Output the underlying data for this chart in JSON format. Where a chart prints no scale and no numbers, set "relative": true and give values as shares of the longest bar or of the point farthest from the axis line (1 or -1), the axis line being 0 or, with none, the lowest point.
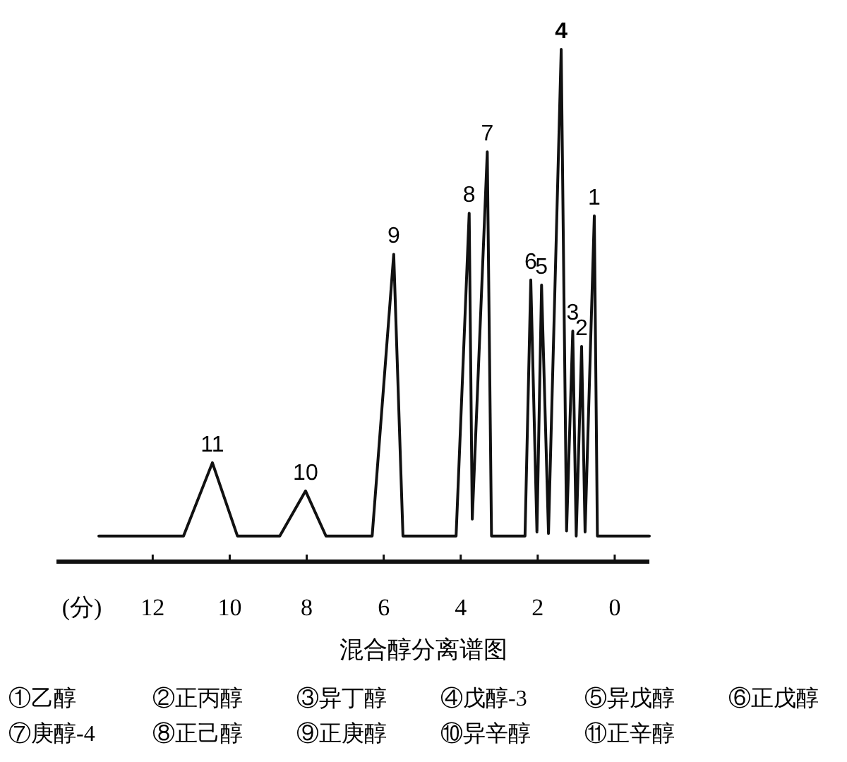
{
  "chart_data": {
    "type": "line",
    "title": "混合醇分离谱图",
    "xlabel": "(分)",
    "relative": true,
    "xlim": [
      14.5,
      -0.9
    ],
    "xticks": [
      12,
      10,
      8,
      6,
      4,
      2,
      0
    ],
    "series": [
      {
        "color": "#111111",
        "x": [
          13.4,
          11.2,
          10.45,
          9.8,
          8.7,
          8.03,
          7.5,
          6.3,
          5.74,
          5.5,
          4.4,
          4.12,
          3.78,
          3.7,
          3.31,
          3.2,
          2.33,
          2.18,
          2.02,
          1.9,
          1.72,
          1.39,
          1.25,
          1.09,
          1.0,
          0.86,
          0.77,
          0.53,
          0.45,
          -0.9
        ],
        "values": [
          0.05,
          0.05,
          0.193,
          0.05,
          0.05,
          0.138,
          0.05,
          0.05,
          0.6,
          0.05,
          0.05,
          0.05,
          0.68,
          0.083,
          0.8,
          0.05,
          0.05,
          0.55,
          0.058,
          0.54,
          0.055,
          1.0,
          0.06,
          0.45,
          0.05,
          0.42,
          0.058,
          0.675,
          0.05,
          0.05
        ]
      }
    ],
    "annotations": [
      {
        "text": "11",
        "x": 10.45,
        "y": 0.193
      },
      {
        "text": "10",
        "x": 8.03,
        "y": 0.138
      },
      {
        "text": "9",
        "x": 5.74,
        "y": 0.6
      },
      {
        "text": "8",
        "x": 3.78,
        "y": 0.68
      },
      {
        "text": "7",
        "x": 3.31,
        "y": 0.8
      },
      {
        "text": "6",
        "x": 2.18,
        "y": 0.55
      },
      {
        "text": "5",
        "x": 1.9,
        "y": 0.54
      },
      {
        "text": "4",
        "x": 1.39,
        "y": 1.0
      },
      {
        "text": "3",
        "x": 1.09,
        "y": 0.45
      },
      {
        "text": "2",
        "x": 0.86,
        "y": 0.42
      },
      {
        "text": "1",
        "x": 0.53,
        "y": 0.675
      },
      "①乙醇",
      "②正丙醇",
      "③异丁醇",
      "④戊醇-3",
      "⑤异戊醇",
      "⑥正戊醇",
      "⑦庚醇-4",
      "⑧正己醇",
      "⑨正庚醇",
      "⑩异辛醇",
      "⑪正辛醇"
    ]
  }
}
